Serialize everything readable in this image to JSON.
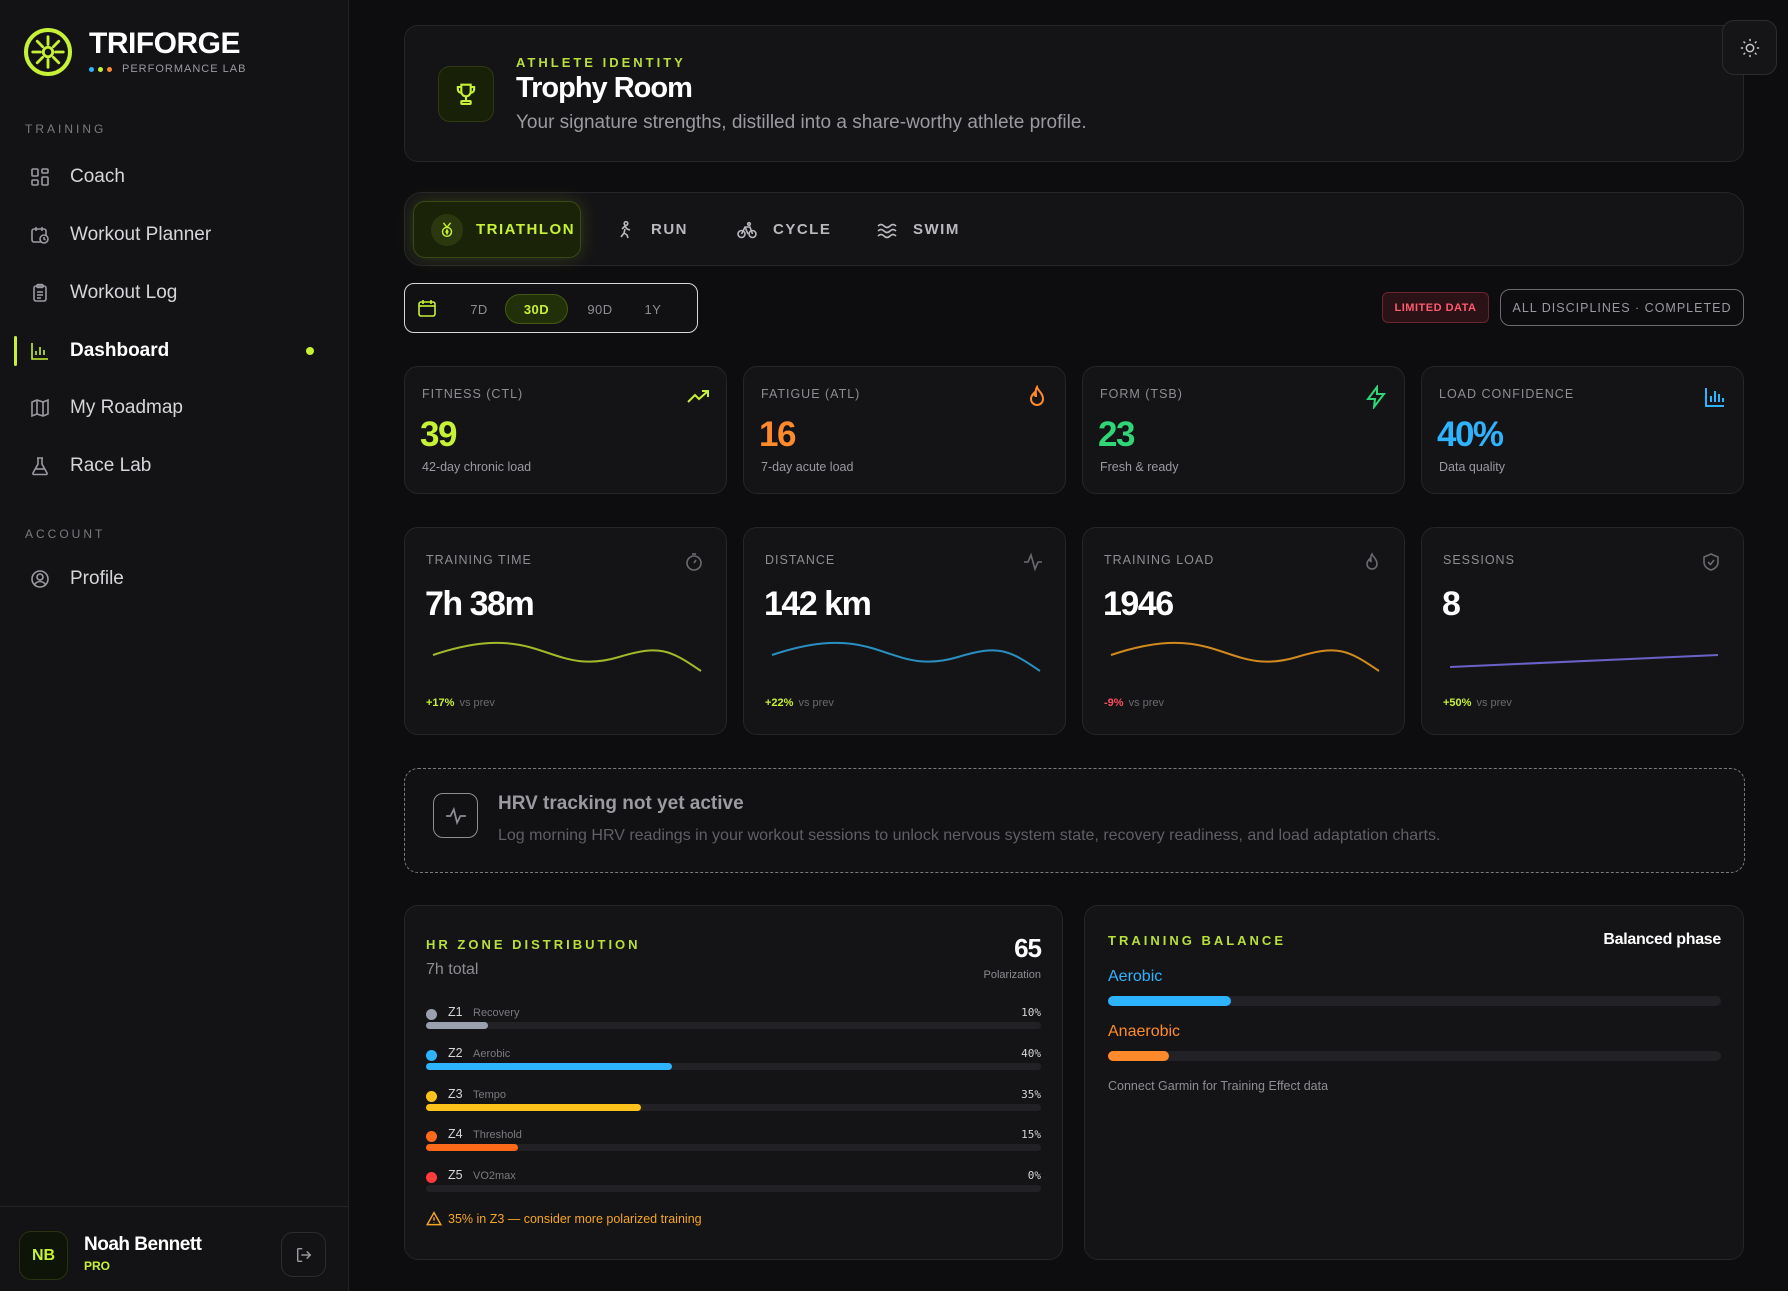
{
  "brand": {
    "name": "TRIFORGE",
    "sub": "PERFORMANCE LAB",
    "accent": "#c6f135"
  },
  "sidebar": {
    "training_label": "TRAINING",
    "account_label": "ACCOUNT",
    "items": [
      {
        "label": "Coach",
        "icon": "grid-icon"
      },
      {
        "label": "Workout Planner",
        "icon": "calendar-clock-icon"
      },
      {
        "label": "Workout Log",
        "icon": "clipboard-icon"
      },
      {
        "label": "Dashboard",
        "icon": "bar-chart-icon",
        "active": true
      },
      {
        "label": "My Roadmap",
        "icon": "map-icon"
      },
      {
        "label": "Race Lab",
        "icon": "flask-icon"
      }
    ],
    "account_items": [
      {
        "label": "Profile",
        "icon": "user-circle-icon"
      }
    ]
  },
  "user": {
    "initials": "NB",
    "name": "Noah Bennett",
    "plan": "PRO"
  },
  "hero": {
    "kicker": "ATHLETE IDENTITY",
    "title": "Trophy Room",
    "subtitle": "Your signature strengths, distilled into a share-worthy athlete profile."
  },
  "tabs": [
    {
      "label": "TRIATHLON",
      "icon": "medal-icon",
      "active": true
    },
    {
      "label": "RUN",
      "icon": "runner-icon"
    },
    {
      "label": "CYCLE",
      "icon": "bike-icon"
    },
    {
      "label": "SWIM",
      "icon": "waves-icon"
    }
  ],
  "ranges": [
    {
      "label": "7D"
    },
    {
      "label": "30D",
      "active": true
    },
    {
      "label": "90D"
    },
    {
      "label": "1Y"
    }
  ],
  "badges": {
    "limited": "LIMITED DATA",
    "disciplines": "ALL DISCIPLINES · COMPLETED"
  },
  "stats": [
    {
      "label": "FITNESS (CTL)",
      "value": "39",
      "sub": "42-day chronic load",
      "color": "#c6f135",
      "icon": "trend-up-icon"
    },
    {
      "label": "FATIGUE (ATL)",
      "value": "16",
      "sub": "7-day acute load",
      "color": "#ff8a2b",
      "icon": "flame-icon"
    },
    {
      "label": "FORM (TSB)",
      "value": "23",
      "sub": "Fresh & ready",
      "color": "#2fd577",
      "icon": "bolt-icon"
    },
    {
      "label": "LOAD CONFIDENCE",
      "value": "40%",
      "sub": "Data quality",
      "color": "#2eb3ff",
      "icon": "bar-chart-icon"
    }
  ],
  "metrics": [
    {
      "label": "TRAINING TIME",
      "value": "7h 38m",
      "change": "+17%",
      "change_note": "vs prev",
      "change_color": "#c6f135",
      "spark_color": "#a3b82a",
      "icon": "stopwatch-icon"
    },
    {
      "label": "DISTANCE",
      "value": "142 km",
      "change": "+22%",
      "change_note": "vs prev",
      "change_color": "#c6f135",
      "spark_color": "#2a8fc0",
      "icon": "pulse-icon"
    },
    {
      "label": "TRAINING LOAD",
      "value": "1946",
      "change": "-9%",
      "change_note": "vs prev",
      "change_color": "#ff4d5e",
      "spark_color": "#d08a1f",
      "icon": "flame-icon"
    },
    {
      "label": "SESSIONS",
      "value": "8",
      "change": "+50%",
      "change_note": "vs prev",
      "change_color": "#c6f135",
      "spark_color": "#6a62c8",
      "icon": "shield-icon"
    }
  ],
  "hrv": {
    "title": "HRV tracking not yet active",
    "subtitle": "Log morning HRV readings in your workout sessions to unlock nervous system state, recovery readiness, and load adaptation charts."
  },
  "zones": {
    "title": "HR ZONE DISTRIBUTION",
    "total": "7h total",
    "polarization_value": "65",
    "polarization_label": "Polarization",
    "items": [
      {
        "zone": "Z1",
        "label": "Recovery",
        "pct_text": "10%",
        "pct": 10,
        "color": "#9aa0ad"
      },
      {
        "zone": "Z2",
        "label": "Aerobic",
        "pct_text": "40%",
        "pct": 40,
        "color": "#2eb3ff"
      },
      {
        "zone": "Z3",
        "label": "Tempo",
        "pct_text": "35%",
        "pct": 35,
        "color": "#ffc21a"
      },
      {
        "zone": "Z4",
        "label": "Threshold",
        "pct_text": "15%",
        "pct": 15,
        "color": "#ff6a1a"
      },
      {
        "zone": "Z5",
        "label": "VO2max",
        "pct_text": "0%",
        "pct": 0,
        "color": "#ff3b3b"
      }
    ],
    "warning": "35% in Z3 — consider more polarized training"
  },
  "balance": {
    "title": "TRAINING BALANCE",
    "phase": "Balanced phase",
    "items": [
      {
        "label": "Aerobic",
        "level": 0.2,
        "color": "#2eb3ff"
      },
      {
        "label": "Anaerobic",
        "level": 0.1,
        "color": "#ff8a2b"
      }
    ],
    "note": "Connect Garmin for Training Effect data"
  }
}
